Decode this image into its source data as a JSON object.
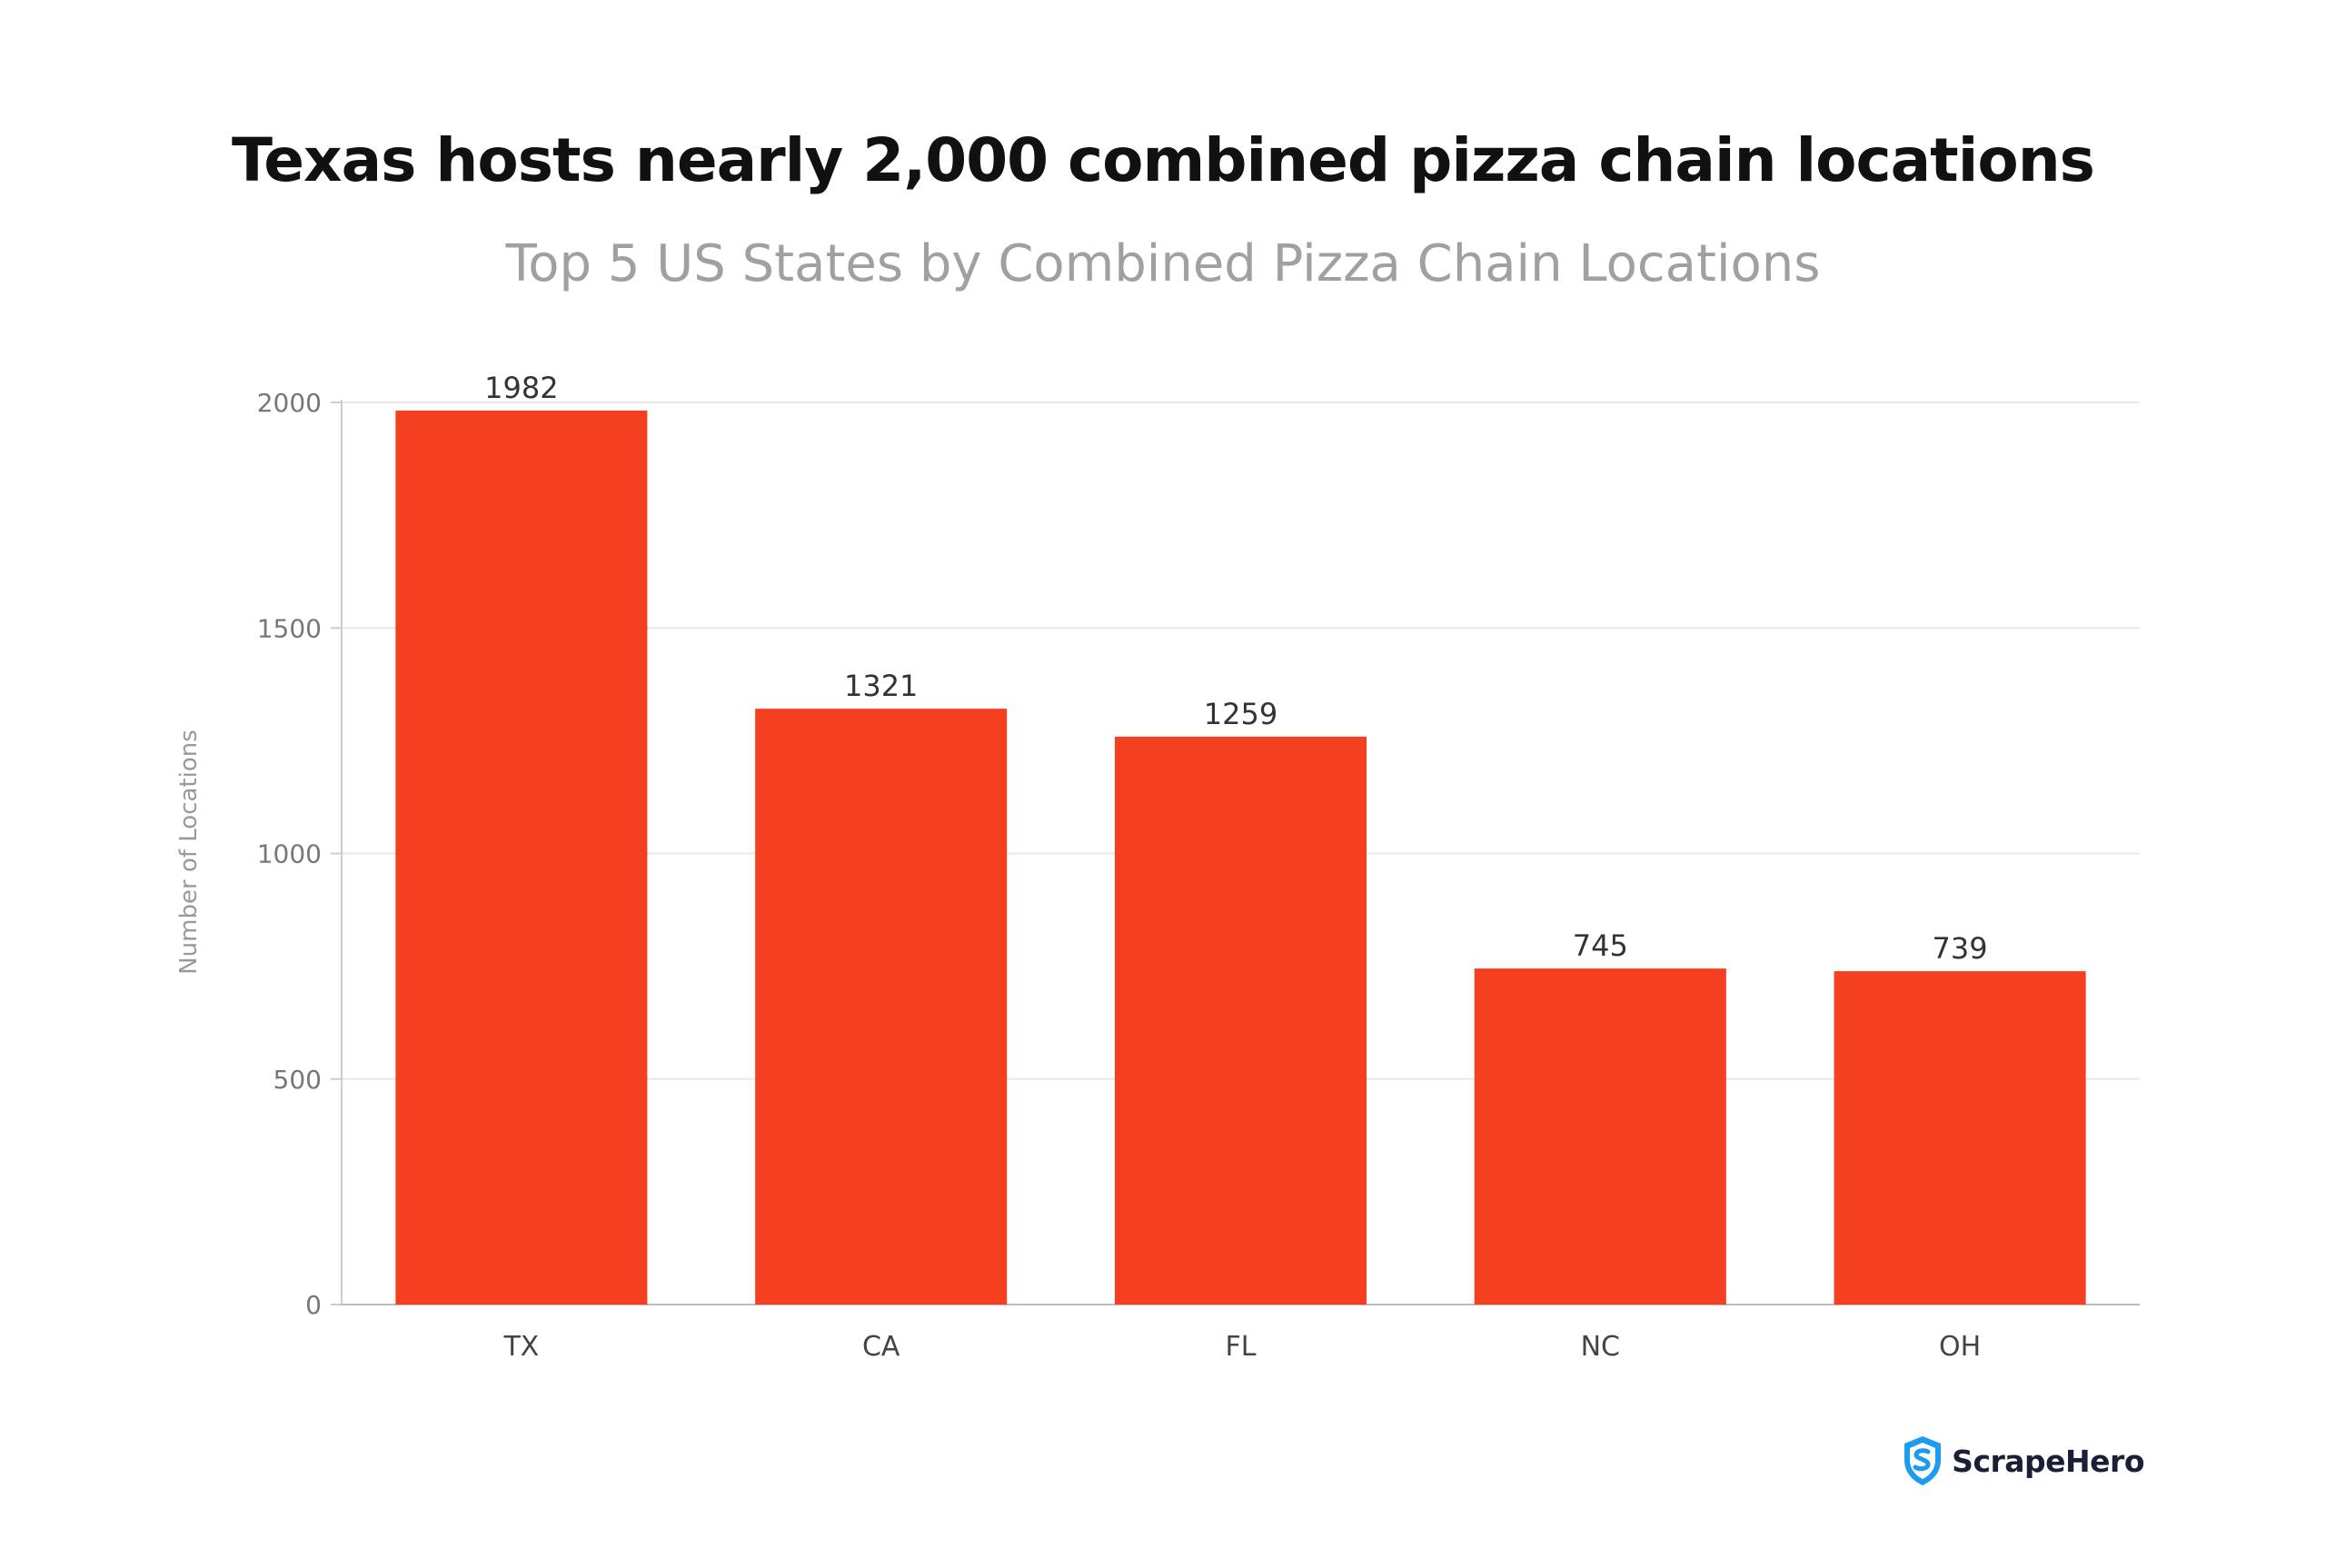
{
  "chart_data": {
    "type": "bar",
    "title": "Texas hosts nearly 2,000 combined pizza chain locations",
    "subtitle": "Top 5 US States by Combined Pizza Chain Locations",
    "xlabel": "",
    "ylabel": "Number of Locations",
    "categories": [
      "TX",
      "CA",
      "FL",
      "NC",
      "OH"
    ],
    "values": [
      1982,
      1321,
      1259,
      745,
      739
    ],
    "value_labels": [
      "1982",
      "1321",
      "1259",
      "745",
      "739"
    ],
    "ylim": [
      0,
      2000
    ],
    "yticks": [
      0,
      500,
      1000,
      1500,
      2000
    ],
    "ytick_labels": [
      "0",
      "500",
      "1000",
      "1500",
      "2000"
    ],
    "grid": "horizontal",
    "legend": "none",
    "bar_color": "#f43f20"
  },
  "brand": {
    "name": "ScrapeHero",
    "logo_icon": "shield-logo-icon",
    "logo_color": "#1d9bf0"
  }
}
